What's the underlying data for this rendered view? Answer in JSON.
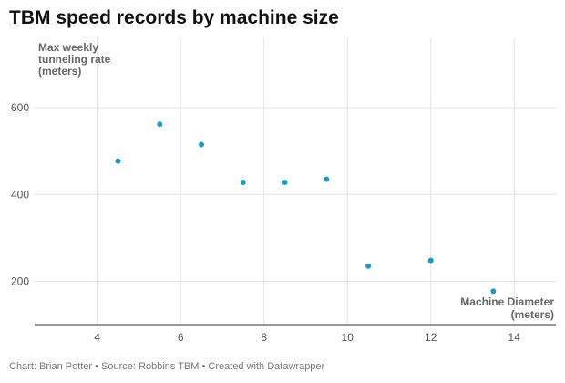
{
  "chart_data": {
    "type": "scatter",
    "title": "TBM speed records by machine size",
    "ylabel_lines": [
      "Max weekly",
      "tunneling rate",
      "(meters)"
    ],
    "xlabel_lines": [
      "Machine Diameter",
      "(meters)"
    ],
    "xlim": [
      2.5,
      15
    ],
    "ylim": [
      100,
      760
    ],
    "xticks": [
      4,
      6,
      8,
      10,
      12,
      14
    ],
    "yticks": [
      200,
      400,
      600
    ],
    "point_color": "#1a9bc7",
    "points": [
      {
        "x": 4.5,
        "y": 477
      },
      {
        "x": 5.5,
        "y": 562
      },
      {
        "x": 6.5,
        "y": 515
      },
      {
        "x": 7.5,
        "y": 428
      },
      {
        "x": 8.5,
        "y": 428
      },
      {
        "x": 9.5,
        "y": 435
      },
      {
        "x": 10.5,
        "y": 235
      },
      {
        "x": 12,
        "y": 248
      },
      {
        "x": 13.5,
        "y": 177
      }
    ]
  },
  "footer": "Chart: Brian Potter • Source: Robbins TBM • Created with Datawrapper"
}
